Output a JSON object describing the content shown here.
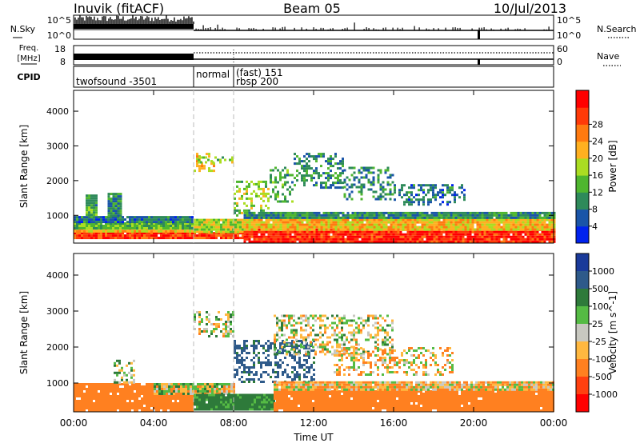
{
  "header": {
    "station": "Inuvik (fitACF)",
    "beam": "Beam 05",
    "date": "10/Jul/2013"
  },
  "sky_panel": {
    "left_label": "N.Sky",
    "right_label": "N.Search",
    "left_ticks": [
      "10^5",
      "10^0"
    ],
    "right_ticks": [
      "10^5",
      "10^0"
    ]
  },
  "freq_panel": {
    "left_label_lines": [
      "Freq.",
      "[MHz]"
    ],
    "right_label": "Nave",
    "left_ticks": [
      "18",
      "8"
    ],
    "right_ticks": [
      "60",
      "0"
    ]
  },
  "cpid_panel": {
    "label": "CPID",
    "programs": [
      {
        "text": "twofsound -3501",
        "start_h": 0
      },
      {
        "text": "normal",
        "start_h": 6
      },
      {
        "text": "(fast) 151",
        "start_h": 8
      },
      {
        "text": "rbsp 200",
        "start_h": 8
      }
    ]
  },
  "x_axis": {
    "label": "Time UT",
    "range_h": [
      0,
      24
    ],
    "ticks": [
      {
        "h": 0,
        "label": "00:00"
      },
      {
        "h": 4,
        "label": "04:00"
      },
      {
        "h": 8,
        "label": "08:00"
      },
      {
        "h": 12,
        "label": "12:00"
      },
      {
        "h": 16,
        "label": "16:00"
      },
      {
        "h": 20,
        "label": "20:00"
      },
      {
        "h": 24,
        "label": "00:00"
      }
    ],
    "mode_change_lines_h": [
      6,
      8
    ]
  },
  "chart_data": [
    {
      "type": "heatmap",
      "title": "",
      "xlabel": "",
      "ylabel": "Slant Range [km]",
      "xlim": [
        0,
        24
      ],
      "ylim": [
        200,
        4600
      ],
      "yticks": [
        1000,
        2000,
        3000,
        4000
      ],
      "colorbar": {
        "label": "Power [dB]",
        "ticks": [
          "4",
          "8",
          "12",
          "16",
          "20",
          "24",
          "28"
        ],
        "colors": [
          "#0022ee",
          "#1a55a8",
          "#2e8a5a",
          "#4fb62f",
          "#aadd22",
          "#ffb020",
          "#ff7a10",
          "#ff3a08",
          "#ff0000"
        ]
      },
      "regions": [
        {
          "x": [
            0.0,
            6.0
          ],
          "y": [
            320,
            520
          ],
          "value": 28
        },
        {
          "x": [
            0.0,
            6.0
          ],
          "y": [
            520,
            640
          ],
          "value": 20
        },
        {
          "x": [
            0.0,
            6.0
          ],
          "y": [
            640,
            800
          ],
          "value": 12
        },
        {
          "x": [
            0.0,
            6.0
          ],
          "y": [
            800,
            980
          ],
          "value": 6
        },
        {
          "x": [
            0.6,
            1.2
          ],
          "y": [
            980,
            1600
          ],
          "value": 10
        },
        {
          "x": [
            1.7,
            2.4
          ],
          "y": [
            980,
            1650
          ],
          "value": 8
        },
        {
          "x": [
            6.0,
            8.5
          ],
          "y": [
            320,
            520
          ],
          "value": 28
        },
        {
          "x": [
            6.0,
            8.5
          ],
          "y": [
            520,
            900
          ],
          "value": 16
        },
        {
          "x": [
            6.0,
            7.0
          ],
          "y": [
            2250,
            2800
          ],
          "value": 20
        },
        {
          "x": [
            6.2,
            8.0
          ],
          "y": [
            2500,
            2700
          ],
          "value": 14
        },
        {
          "x": [
            8.0,
            9.8
          ],
          "y": [
            1000,
            2000
          ],
          "value": 14
        },
        {
          "x": [
            9.8,
            11.0
          ],
          "y": [
            1400,
            2400
          ],
          "value": 10
        },
        {
          "x": [
            11.0,
            13.5
          ],
          "y": [
            1800,
            2800
          ],
          "value": 8
        },
        {
          "x": [
            13.5,
            16.0
          ],
          "y": [
            1500,
            2400
          ],
          "value": 8
        },
        {
          "x": [
            16.0,
            19.5
          ],
          "y": [
            1300,
            1900
          ],
          "value": 6
        },
        {
          "x": [
            8.5,
            24.0
          ],
          "y": [
            250,
            620
          ],
          "value": 30
        },
        {
          "x": [
            8.5,
            24.0
          ],
          "y": [
            620,
            900
          ],
          "value": 20
        },
        {
          "x": [
            8.5,
            24.0
          ],
          "y": [
            900,
            1100
          ],
          "value": 8
        }
      ]
    },
    {
      "type": "heatmap",
      "title": "",
      "xlabel": "Time UT",
      "ylabel": "Slant Range [km]",
      "xlim": [
        0,
        24
      ],
      "ylim": [
        200,
        4600
      ],
      "yticks": [
        1000,
        2000,
        3000,
        4000
      ],
      "colorbar": {
        "label": "Velocity [m s^-1]",
        "ticks": [
          "1000",
          "500",
          "100",
          "25",
          "-25",
          "-100",
          "-500",
          "-1000"
        ],
        "colors": [
          "#1a3a9a",
          "#2e5a8a",
          "#2e7a3a",
          "#55bb44",
          "#c8c8c0",
          "#ffb840",
          "#ff8020",
          "#ff4010",
          "#ff0000"
        ]
      },
      "regions": [
        {
          "x": [
            0.0,
            6.0
          ],
          "y": [
            250,
            1000
          ],
          "value": -300
        },
        {
          "x": [
            2.0,
            3.0
          ],
          "y": [
            1000,
            1650
          ],
          "value": 50
        },
        {
          "x": [
            4.0,
            8.0
          ],
          "y": [
            700,
            1000
          ],
          "value": 0
        },
        {
          "x": [
            6.0,
            10.0
          ],
          "y": [
            250,
            700
          ],
          "value": 200
        },
        {
          "x": [
            6.0,
            8.0
          ],
          "y": [
            2300,
            3000
          ],
          "value": 0
        },
        {
          "x": [
            8.0,
            12.0
          ],
          "y": [
            1000,
            2200
          ],
          "value": 600
        },
        {
          "x": [
            10.0,
            16.0
          ],
          "y": [
            1800,
            2900
          ],
          "value": 0
        },
        {
          "x": [
            13.0,
            19.0
          ],
          "y": [
            1200,
            2000
          ],
          "value": -50
        },
        {
          "x": [
            10.0,
            24.0
          ],
          "y": [
            250,
            800
          ],
          "value": -300
        },
        {
          "x": [
            10.0,
            24.0
          ],
          "y": [
            800,
            1050
          ],
          "value": -60
        }
      ]
    }
  ]
}
